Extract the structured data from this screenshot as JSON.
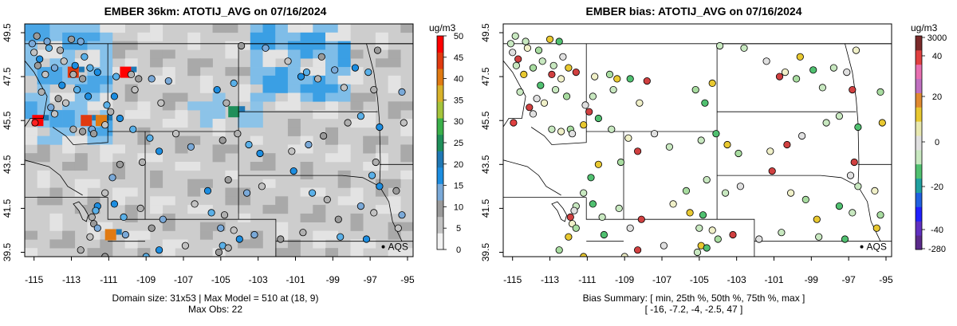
{
  "maps": [
    {
      "id": "left",
      "title": "EMBER 36km: ATOTIJ_AVG on 07/16/2024",
      "x_ticks": [
        "-115",
        "-113",
        "-111",
        "-109",
        "-107",
        "-105",
        "-103",
        "-101",
        "-99",
        "-97",
        "-95"
      ],
      "y_ticks": [
        "39.5",
        "41.5",
        "43.5",
        "45.5",
        "47.5",
        "49.5"
      ],
      "colorbar": {
        "title": "ug/m3",
        "labels": [
          "0",
          "5",
          "10",
          "15",
          "20",
          "25",
          "30",
          "35",
          "40",
          "45",
          "50"
        ],
        "colors": [
          "#f2f2f2",
          "#c2c2c2",
          "#9a9a9a",
          "#7aa9d8",
          "#1c8de0",
          "#1f78b4",
          "#1f8f5a",
          "#3bb04a",
          "#a5c43b",
          "#d8b22a",
          "#e07a12",
          "#e03a10",
          "#ff0000"
        ]
      },
      "marker_label": "AQS",
      "footer": [
        "Domain size: 31x53 | Max Model = 510 at (18, 9)",
        "Max Obs: 22"
      ]
    },
    {
      "id": "right",
      "title": "EMBER bias: ATOTIJ_AVG on 07/16/2024",
      "x_ticks": [
        "-115",
        "-113",
        "-111",
        "-109",
        "-107",
        "-105",
        "-103",
        "-101",
        "-99",
        "-97",
        "-95"
      ],
      "y_ticks": [
        "39.5",
        "41.5",
        "43.5",
        "45.5",
        "47.5",
        "49.5"
      ],
      "colorbar": {
        "title": "ug/m3",
        "labels": [
          "3000",
          "40",
          "20",
          "0",
          "-20",
          "-40",
          "-280"
        ],
        "colors": [
          "#7b2a2a",
          "#e04040",
          "#e86fb0",
          "#c070c0",
          "#e08a30",
          "#e8c830",
          "#e8e8b0",
          "#e0e0e0",
          "#c8e8c0",
          "#50c070",
          "#20a0a0",
          "#2060e0",
          "#2020ff",
          "#6030c0",
          "#5a2a8a"
        ]
      },
      "marker_label": "AQS",
      "footer": [
        "Bias Summary: [ min, 25th %, 50th %, 75th %, max ]",
        "[ -16,   -7.2,   -4,   -2.5,   47 ]"
      ]
    }
  ],
  "stations": [
    [
      -114.85,
      49.35
    ],
    [
      -114.3,
      49.1
    ],
    [
      -115.0,
      48.6
    ],
    [
      -114.7,
      48.3
    ],
    [
      -114.2,
      48.8
    ],
    [
      -113.6,
      48.7
    ],
    [
      -113.0,
      49.2
    ],
    [
      -112.5,
      49.1
    ],
    [
      -113.4,
      48.2
    ],
    [
      -112.8,
      48.0
    ],
    [
      -112.3,
      48.4
    ],
    [
      -112.9,
      47.6
    ],
    [
      -112.4,
      47.4
    ],
    [
      -113.9,
      47.9
    ],
    [
      -114.4,
      47.6
    ],
    [
      -113.5,
      47.1
    ],
    [
      -112.7,
      46.9
    ],
    [
      -114.6,
      46.8
    ],
    [
      -113.7,
      46.5
    ],
    [
      -114.1,
      46.1
    ],
    [
      -113.3,
      46.3
    ],
    [
      -112.1,
      46.6
    ],
    [
      -112.0,
      47.9
    ],
    [
      -114.95,
      45.4
    ],
    [
      -114.8,
      48.0
    ],
    [
      -115.1,
      49.0
    ],
    [
      -113.9,
      45.8
    ],
    [
      -111.6,
      47.7
    ],
    [
      -110.6,
      47.5
    ],
    [
      -109.8,
      47.6
    ],
    [
      -109.4,
      47.4
    ],
    [
      -108.7,
      47.4
    ],
    [
      -109.6,
      46.9
    ],
    [
      -110.7,
      46.6
    ],
    [
      -111.1,
      46.2
    ],
    [
      -110.9,
      45.9
    ],
    [
      -112.4,
      45.0
    ],
    [
      -111.9,
      45.1
    ],
    [
      -111.2,
      45.3
    ],
    [
      -110.4,
      45.6
    ],
    [
      -109.7,
      45.1
    ],
    [
      -112.9,
      45.1
    ],
    [
      -111.8,
      44.9
    ],
    [
      -107.8,
      47.3
    ],
    [
      -108.2,
      46.3
    ],
    [
      -105.2,
      46.9
    ],
    [
      -104.3,
      47.2
    ],
    [
      -104.7,
      46.3
    ],
    [
      -103.9,
      48.9
    ],
    [
      -102.6,
      48.8
    ],
    [
      -101.4,
      48.2
    ],
    [
      -100.7,
      47.5
    ],
    [
      -100.4,
      47.7
    ],
    [
      -99.8,
      47.4
    ],
    [
      -99.6,
      48.4
    ],
    [
      -98.9,
      47.8
    ],
    [
      -98.4,
      47.0
    ],
    [
      -97.8,
      47.9
    ],
    [
      -97.1,
      47.7
    ],
    [
      -96.8,
      46.9
    ],
    [
      -96.6,
      48.7
    ],
    [
      -95.3,
      46.8
    ],
    [
      -95.2,
      45.4
    ],
    [
      -96.5,
      45.2
    ],
    [
      -97.5,
      45.7
    ],
    [
      -98.2,
      45.4
    ],
    [
      -99.5,
      44.8
    ],
    [
      -100.3,
      44.4
    ],
    [
      -101.2,
      44.1
    ],
    [
      -102.9,
      44.0
    ],
    [
      -103.5,
      44.4
    ],
    [
      -104.1,
      44.9
    ],
    [
      -104.9,
      44.6
    ],
    [
      -106.6,
      44.3
    ],
    [
      -107.4,
      44.9
    ],
    [
      -108.3,
      44.1
    ],
    [
      -108.8,
      44.7
    ],
    [
      -109.2,
      43.6
    ],
    [
      -110.4,
      43.5
    ],
    [
      -110.8,
      42.9
    ],
    [
      -111.2,
      42.2
    ],
    [
      -111.6,
      41.6
    ],
    [
      -111.7,
      41.4
    ],
    [
      -111.9,
      41.1
    ],
    [
      -111.8,
      40.8
    ],
    [
      -111.6,
      40.6
    ],
    [
      -112.0,
      40.2
    ],
    [
      -110.7,
      41.7
    ],
    [
      -110.2,
      41.1
    ],
    [
      -109.3,
      41.5
    ],
    [
      -108.7,
      40.6
    ],
    [
      -108.1,
      41.0
    ],
    [
      -106.4,
      41.7
    ],
    [
      -105.7,
      42.3
    ],
    [
      -105.5,
      41.3
    ],
    [
      -104.8,
      41.2
    ],
    [
      -104.6,
      42.8
    ],
    [
      -103.6,
      42.2
    ],
    [
      -102.8,
      42.5
    ],
    [
      -101.1,
      43.2
    ],
    [
      -100.1,
      42.2
    ],
    [
      -99.3,
      41.9
    ],
    [
      -98.7,
      41.0
    ],
    [
      -97.5,
      41.6
    ],
    [
      -96.8,
      41.3
    ],
    [
      -96.5,
      42.5
    ],
    [
      -96.9,
      43.0
    ],
    [
      -96.7,
      43.6
    ],
    [
      -95.6,
      42.3
    ],
    [
      -95.3,
      41.2
    ],
    [
      -95.5,
      40.6
    ],
    [
      -97.2,
      40.1
    ],
    [
      -98.6,
      40.2
    ],
    [
      -100.6,
      40.4
    ],
    [
      -101.8,
      40.1
    ],
    [
      -103.2,
      40.3
    ],
    [
      -104.3,
      40.5
    ],
    [
      -104.0,
      40.1
    ],
    [
      -104.9,
      39.8
    ],
    [
      -104.6,
      39.7
    ],
    [
      -105.1,
      39.5
    ],
    [
      -105.0,
      40.6
    ],
    [
      -106.9,
      39.8
    ],
    [
      -108.3,
      39.6
    ],
    [
      -109.0,
      39.3
    ],
    [
      -112.5,
      39.6
    ],
    [
      -111.2,
      39.3
    ],
    [
      -110.1,
      40.3
    ]
  ],
  "smoke_hotspots": [
    [
      -114.8,
      45.5
    ],
    [
      -112.2,
      45.5
    ],
    [
      -111.4,
      45.5
    ],
    [
      -104.3,
      45.9
    ],
    [
      -110.1,
      47.7
    ],
    [
      -112.9,
      47.7
    ],
    [
      -110.9,
      40.3
    ]
  ]
}
